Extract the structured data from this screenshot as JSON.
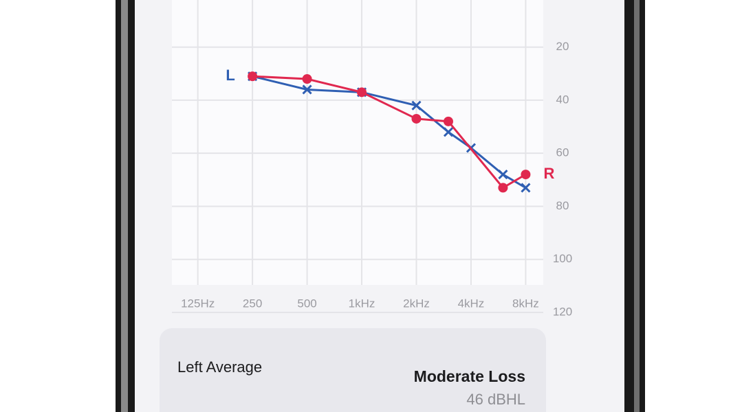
{
  "chart_data": {
    "type": "line",
    "xlim": [
      90,
      10000
    ],
    "x_log": true,
    "xticks": [
      {
        "value": 125,
        "label": "125Hz"
      },
      250,
      500,
      {
        "value": 1000,
        "label": "1kHz"
      },
      {
        "value": 2000,
        "label": "2kHz"
      },
      {
        "value": 4000,
        "label": "4kHz"
      },
      {
        "value": 8000,
        "label": "8kHz"
      }
    ],
    "ylim": [
      10,
      120
    ],
    "y_reversed": true,
    "yticks": [
      20,
      40,
      60,
      80,
      100,
      120
    ],
    "grid": true,
    "series": [
      {
        "name": "L",
        "color": "#2f5fb3",
        "marker": "x",
        "x": [
          250,
          500,
          1000,
          2000,
          3000,
          4000,
          6000,
          8000
        ],
        "values": [
          31,
          36,
          37,
          42,
          52,
          58,
          68,
          73
        ]
      },
      {
        "name": "R",
        "color": "#e0284f",
        "marker": "o",
        "x": [
          250,
          500,
          1000,
          2000,
          3000,
          6000,
          8000
        ],
        "values": [
          31,
          32,
          37,
          47,
          48,
          73,
          68
        ]
      }
    ]
  },
  "summary": {
    "label": "Left Average",
    "result": "Moderate Loss",
    "value": "46 dBHL"
  }
}
